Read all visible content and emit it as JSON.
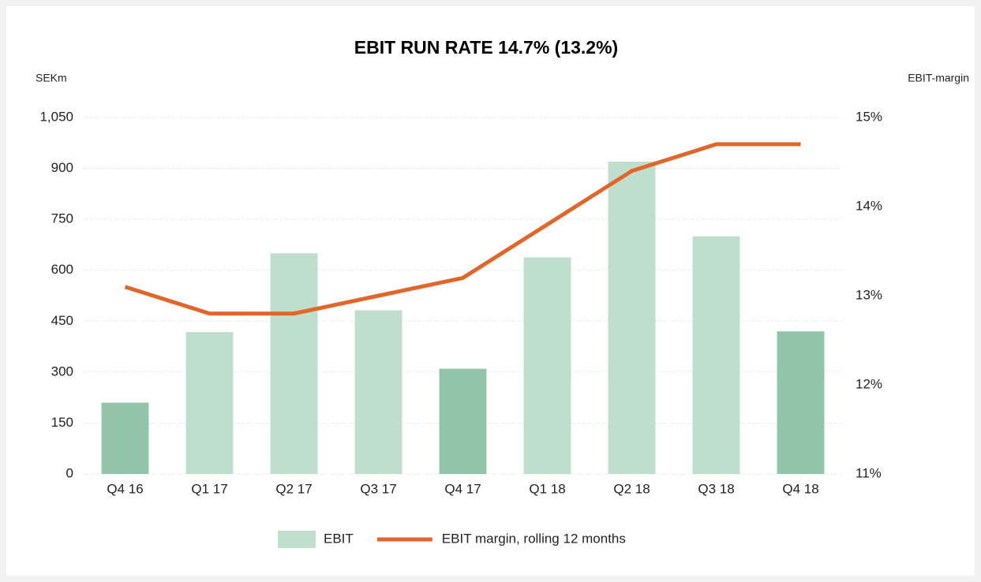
{
  "chart_data": {
    "type": "bar_line",
    "title": "EBIT RUN RATE 14.7% (13.2%)",
    "y_label": "SEKm",
    "y2_label": "EBIT-margin",
    "categories": [
      "Q4 16",
      "Q1 17",
      "Q2 17",
      "Q3 17",
      "Q4 17",
      "Q1 18",
      "Q2 18",
      "Q3 18",
      "Q4 18"
    ],
    "series": [
      {
        "name": "EBIT",
        "type": "bar",
        "color": "#c0dece",
        "colors": [
          "#93c4aa",
          "#c0dece",
          "#c0dece",
          "#c0dece",
          "#93c4aa",
          "#c0dece",
          "#c0dece",
          "#c0dece",
          "#93c4aa"
        ],
        "values": [
          210,
          418,
          650,
          482,
          310,
          638,
          920,
          700,
          420
        ]
      },
      {
        "name": "EBIT margin, rolling 12 months",
        "type": "line",
        "axis": "y2",
        "color": "#e0662a",
        "values": [
          13.1,
          12.8,
          12.8,
          13.0,
          13.2,
          13.8,
          14.4,
          14.7,
          14.7
        ]
      }
    ],
    "ylim": [
      0,
      1050
    ],
    "yticks": [
      0,
      150,
      300,
      450,
      600,
      750,
      900,
      {
        "value": 1050,
        "label": "1,050"
      }
    ],
    "y2lim": [
      11,
      15
    ],
    "y2ticks": [
      {
        "value": 11,
        "label": "11%"
      },
      {
        "value": 12,
        "label": "12%"
      },
      {
        "value": 13,
        "label": "13%"
      },
      {
        "value": 14,
        "label": "14%"
      },
      {
        "value": 15,
        "label": "15%"
      }
    ],
    "grid": true,
    "legend": "bottom"
  }
}
